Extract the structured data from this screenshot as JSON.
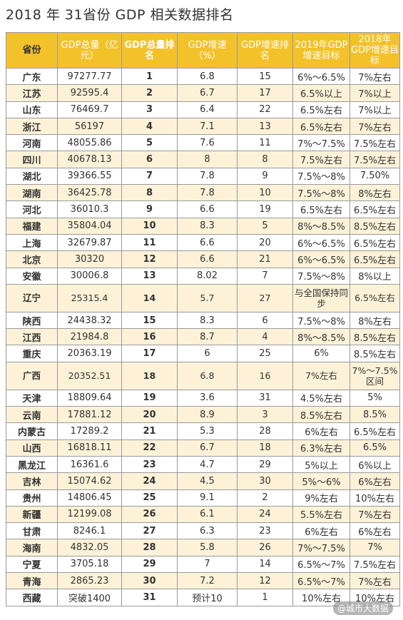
{
  "title": "2018 年 31省份 GDP 相关数据排名",
  "columns": [
    "省份",
    "GDP总量（亿元）",
    "GDP总量排名",
    "GDP增速（%）",
    "GDP增速排名",
    "2019年GDP增速目标",
    "2018年GDP增速目标"
  ],
  "rows": [
    [
      "广东",
      "97277.77",
      "1",
      "6.8",
      "15",
      "6%～6.5%",
      "7%左右"
    ],
    [
      "江苏",
      "92595.4",
      "2",
      "6.7",
      "17",
      "6.5%以上",
      "7%以上"
    ],
    [
      "山东",
      "76469.7",
      "3",
      "6.4",
      "22",
      "6.5%左右",
      "7%以上"
    ],
    [
      "浙江",
      "56197",
      "4",
      "7.1",
      "13",
      "6.5%左右",
      "7%左右"
    ],
    [
      "河南",
      "48055.86",
      "5",
      "7.6",
      "11",
      "7%～7.5%",
      "7.5%左右"
    ],
    [
      "四川",
      "40678.13",
      "6",
      "8",
      "8",
      "7.5%左右",
      "7.5%左右"
    ],
    [
      "湖北",
      "39366.55",
      "7",
      "7.8",
      "9",
      "7.5%～8%",
      "7.50%"
    ],
    [
      "湖南",
      "36425.78",
      "8",
      "7.8",
      "10",
      "7.5%～8%",
      "8%左右"
    ],
    [
      "河北",
      "36010.3",
      "9",
      "6.6",
      "19",
      "6.5%左右",
      "6.5%左右"
    ],
    [
      "福建",
      "35804.04",
      "10",
      "8.3",
      "5",
      "8%～8.5%",
      "8.5%左右"
    ],
    [
      "上海",
      "32679.87",
      "11",
      "6.6",
      "20",
      "6%～6.5%",
      "6.5%左右"
    ],
    [
      "北京",
      "30320",
      "12",
      "6.6",
      "21",
      "6%～6.5%",
      "6.5%左右"
    ],
    [
      "安徽",
      "30006.8",
      "13",
      "8.02",
      "7",
      "7.5%～8%",
      "8%以上"
    ],
    [
      "辽宁",
      "25315.4",
      "14",
      "5.7",
      "27",
      "与全国保持同步",
      "6.5%左右"
    ],
    [
      "陕西",
      "24438.32",
      "15",
      "8.3",
      "6",
      "7.5%～8%",
      "8%左右"
    ],
    [
      "江西",
      "21984.8",
      "16",
      "8.7",
      "4",
      "8%～8.5%",
      "8.5%左右"
    ],
    [
      "重庆",
      "20363.19",
      "17",
      "6",
      "25",
      "6%",
      "8.5%左右"
    ],
    [
      "广西",
      "20352.51",
      "18",
      "6.8",
      "16",
      "7%左右",
      "7%～7.5%区间"
    ],
    [
      "天津",
      "18809.64",
      "19",
      "3.6",
      "31",
      "4.5%左右",
      "5%"
    ],
    [
      "云南",
      "17881.12",
      "20",
      "8.9",
      "3",
      "8.5%左右",
      "8.5%"
    ],
    [
      "内蒙古",
      "17289.2",
      "21",
      "5.3",
      "28",
      "6%左右",
      "6.5%左右"
    ],
    [
      "山西",
      "16818.11",
      "22",
      "6.7",
      "18",
      "6.3%左右",
      "6.5%"
    ],
    [
      "黑龙江",
      "16361.6",
      "23",
      "4.7",
      "29",
      "5%以上",
      "6%以上"
    ],
    [
      "吉林",
      "15074.62",
      "24",
      "4.5",
      "30",
      "5%～6%",
      "6%左右"
    ],
    [
      "贵州",
      "14806.45",
      "25",
      "9.1",
      "2",
      "9%左右",
      "10%左右"
    ],
    [
      "新疆",
      "12199.08",
      "26",
      "6.1",
      "24",
      "5.5%左右",
      "7%左右"
    ],
    [
      "甘肃",
      "8246.1",
      "27",
      "6.3",
      "23",
      "6%左右",
      "6%左右"
    ],
    [
      "海南",
      "4832.05",
      "28",
      "5.8",
      "26",
      "7%～7.5%",
      "7%"
    ],
    [
      "宁夏",
      "3705.18",
      "29",
      "7",
      "14",
      "6.5%～7%",
      "7.5%左右"
    ],
    [
      "青海",
      "2865.23",
      "30",
      "7.2",
      "12",
      "6.5%～7%",
      "7%左右"
    ],
    [
      "西藏",
      "突破1400",
      "31",
      "预计10",
      "1",
      "10%左右",
      "10%左右"
    ]
  ],
  "watermark": "@城市大数据",
  "colors": {
    "header_bg": "#f3c12a",
    "stripe_bg": "#fdf2d8",
    "border": "#9a9a9a"
  }
}
